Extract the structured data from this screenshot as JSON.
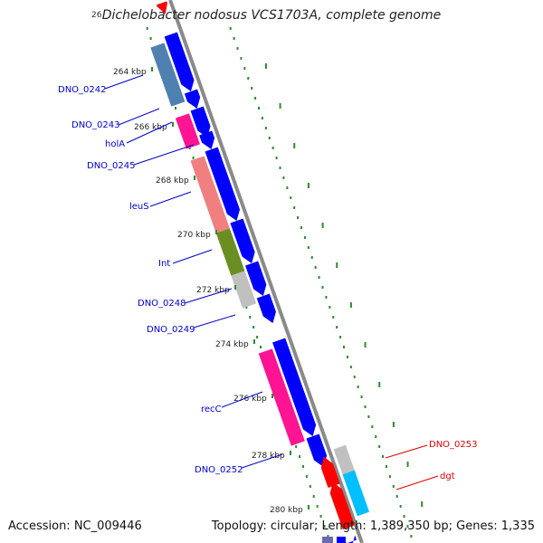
{
  "title": "Dichelobacter nodosus VCS1703A, complete genome",
  "title_clip": "26",
  "footer": {
    "accession": "Accession: NC_009446",
    "summary": "Topology: circular; Length: 1,389,350 bp; Genes: 1,335"
  },
  "colors": {
    "backbone": "#808080",
    "cds": "#0000ff",
    "ticks": "#2e8b2e",
    "label_forward": "#0000cc",
    "label_reverse": "#dd0000"
  },
  "kbp_ticks": [
    "264 kbp",
    "266 kbp",
    "268 kbp",
    "270 kbp",
    "272 kbp",
    "274 kbp",
    "276 kbp",
    "278 kbp",
    "280 kbp"
  ],
  "features": [
    {
      "label": "DNO_0242",
      "color": "#4f81b0"
    },
    {
      "label": "DNO_0243",
      "color": "#ff1493"
    },
    {
      "label": "holA",
      "color": ""
    },
    {
      "label": "DNO_0245",
      "color": ""
    },
    {
      "label": "leuS",
      "color": "#f08080"
    },
    {
      "label": "Int",
      "color": "#6b8e23"
    },
    {
      "label": "DNO_0248",
      "color": "#c0c0c0"
    },
    {
      "label": "DNO_0249",
      "color": ""
    },
    {
      "label": "recC",
      "color": "#ff1493"
    },
    {
      "label": "DNO_0252",
      "color": ""
    },
    {
      "label": "DNO_0253",
      "color": "#c0c0c0"
    },
    {
      "label": "dgt",
      "color": "#00bfff"
    }
  ]
}
